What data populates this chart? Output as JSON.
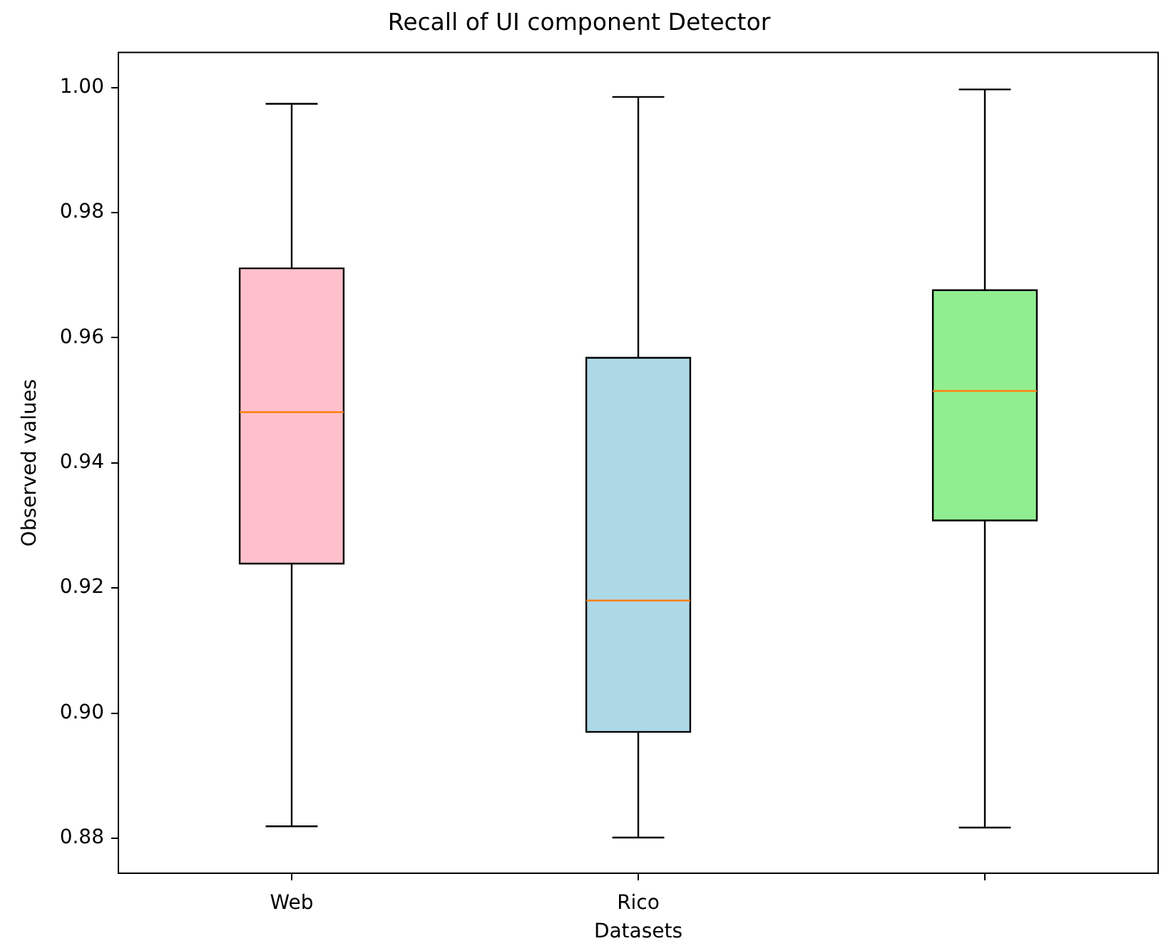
{
  "chart_data": {
    "type": "box",
    "title": "Recall of UI component Detector",
    "xlabel": "Datasets",
    "ylabel": "Observed values",
    "categories": [
      "Web",
      "Rico",
      null
    ],
    "colors": [
      "#ffc0cb",
      "#add8e6",
      "#90ee90"
    ],
    "boxes": [
      {
        "low": 0.8819,
        "q1": 0.9239,
        "median": 0.9481,
        "q3": 0.9711,
        "high": 0.9974
      },
      {
        "low": 0.8801,
        "q1": 0.897,
        "median": 0.918,
        "q3": 0.9568,
        "high": 0.9985
      },
      {
        "low": 0.8817,
        "q1": 0.9308,
        "median": 0.9515,
        "q3": 0.9676,
        "high": 0.9997
      }
    ],
    "ylim": [
      0.8744,
      1.0056
    ],
    "yticks": [
      0.88,
      {
        "value": 0.9,
        "label": "0.90"
      },
      0.92,
      0.94,
      0.96,
      0.98,
      {
        "value": 1,
        "label": "1.00"
      }
    ]
  }
}
